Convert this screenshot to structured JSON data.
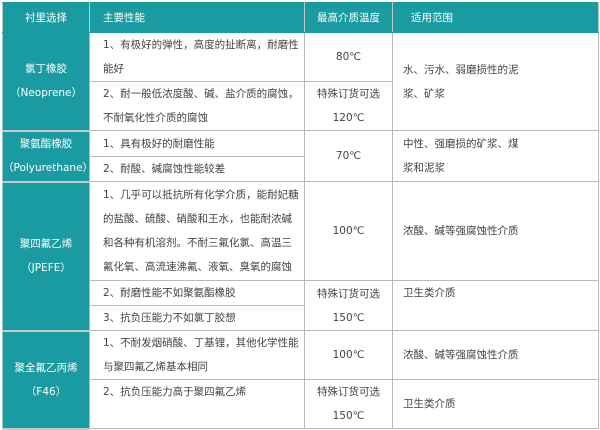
{
  "headers": [
    "衬里选择",
    "主要性能",
    "最高介质温度",
    "适用范围"
  ],
  "colors": {
    "header_bg": "#1a9ba1",
    "header_text": "#ffffff",
    "border": "#b9b9b9"
  },
  "rows": [
    {
      "material": "氯丁橡胶",
      "material_en": "（Neoprene）",
      "perf": [
        "1、有极好的弹性，高度的扯断离，耐磨性能好",
        "2、耐一般低浓度酸、碱、盐介质的腐蚀，不耐氧化性介质的腐蚀"
      ],
      "temp": [
        "80℃",
        "特殊订货可选",
        "120℃"
      ],
      "use": [
        "水、污水、弱磨损性的泥浆、矿浆"
      ]
    },
    {
      "material": "聚氨酯橡胶",
      "material_en": "（Polyurethane）",
      "perf": [
        "1、具有极好的耐磨性能",
        "2、耐酸、碱腐蚀性能较差"
      ],
      "temp": [
        "70℃"
      ],
      "use": [
        "中性、强磨损的矿浆、煤浆和泥浆"
      ]
    },
    {
      "material": "聚四氟乙烯",
      "material_en": "（JPEFE）",
      "perf": [
        "1、几乎可以抵抗所有化学介质，能耐妃糖的盐酸、硫酸、硝酸和王水，也能耐浓碱和各种有机溶剂。不耐三氟化氯、高温三氟化氧、高流速沸氟、液氧、臭氧的腐蚀",
        "2、耐磨性能不如聚氨酯橡胶",
        "3、抗负压能力不如氯丁胶想"
      ],
      "temp": [
        "100℃",
        "特殊订货可选",
        "150℃"
      ],
      "use": [
        "浓酸、碱等强腐蚀性介质",
        "卫生类介质"
      ]
    },
    {
      "material": "聚全氟乙丙烯",
      "material_en": "（F46）",
      "perf": [
        "1、不耐发烟硝酸、丁基锂，其他化学性能与聚四氟乙烯基本相同",
        "2、抗负压能力高于聚四氟乙烯"
      ],
      "temp": [
        "100℃",
        "特殊订货可选",
        "150℃"
      ],
      "use": [
        "浓酸、碱等强腐蚀性介质",
        "卫生类介质"
      ]
    }
  ]
}
